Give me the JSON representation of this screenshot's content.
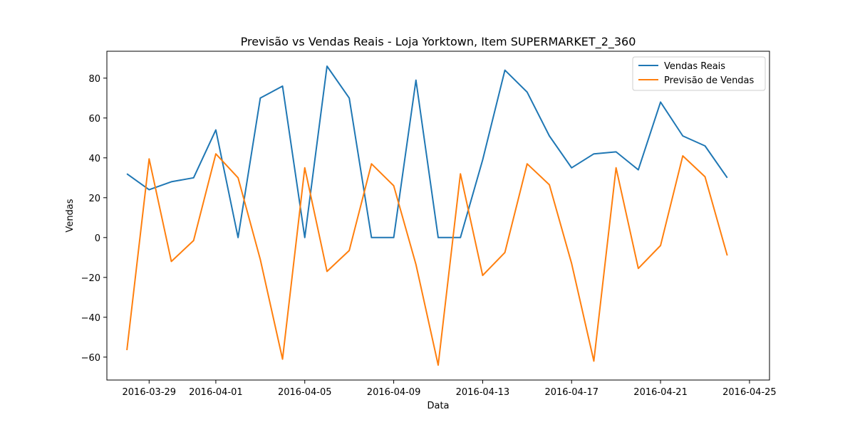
{
  "chart_data": {
    "type": "line",
    "title": "Previsão vs Vendas Reais - Loja Yorktown, Item SUPERMARKET_2_360",
    "xlabel": "Data",
    "ylabel": "Vendas",
    "x": [
      "2016-03-28",
      "2016-03-29",
      "2016-03-30",
      "2016-03-31",
      "2016-04-01",
      "2016-04-02",
      "2016-04-03",
      "2016-04-04",
      "2016-04-05",
      "2016-04-06",
      "2016-04-07",
      "2016-04-08",
      "2016-04-09",
      "2016-04-10",
      "2016-04-11",
      "2016-04-12",
      "2016-04-13",
      "2016-04-14",
      "2016-04-15",
      "2016-04-16",
      "2016-04-17",
      "2016-04-18",
      "2016-04-19",
      "2016-04-20",
      "2016-04-21",
      "2016-04-22",
      "2016-04-23",
      "2016-04-24"
    ],
    "series": [
      {
        "name": "Vendas Reais",
        "color": "#1f77b4",
        "values": [
          32,
          24,
          28,
          30,
          54,
          0,
          70,
          76,
          0,
          86,
          70,
          0,
          0,
          79,
          0,
          0,
          39,
          84,
          73,
          51,
          35,
          42,
          43,
          34,
          68,
          51,
          46,
          30
        ]
      },
      {
        "name": "Previsão de Vendas",
        "color": "#ff7f0e",
        "values": [
          -56.5,
          39.5,
          -12,
          -1.5,
          42,
          30,
          -11,
          -61,
          35,
          -17,
          -6.5,
          37,
          26,
          -13.5,
          -64,
          32,
          -19,
          -7.5,
          37,
          26.5,
          -13,
          -62,
          35,
          -15.5,
          -4,
          41,
          30.5,
          -9
        ]
      }
    ],
    "xticks": [
      "2016-03-29",
      "2016-04-01",
      "2016-04-05",
      "2016-04-09",
      "2016-04-13",
      "2016-04-17",
      "2016-04-21",
      "2016-04-25"
    ],
    "yticks": [
      -60,
      -40,
      -20,
      0,
      20,
      40,
      60,
      80
    ],
    "xlim": [
      "2016-03-27.1",
      "2016-04-25.9"
    ],
    "ylim": [
      -71.5,
      93.5
    ],
    "grid": false,
    "legend_position": "top-right"
  }
}
